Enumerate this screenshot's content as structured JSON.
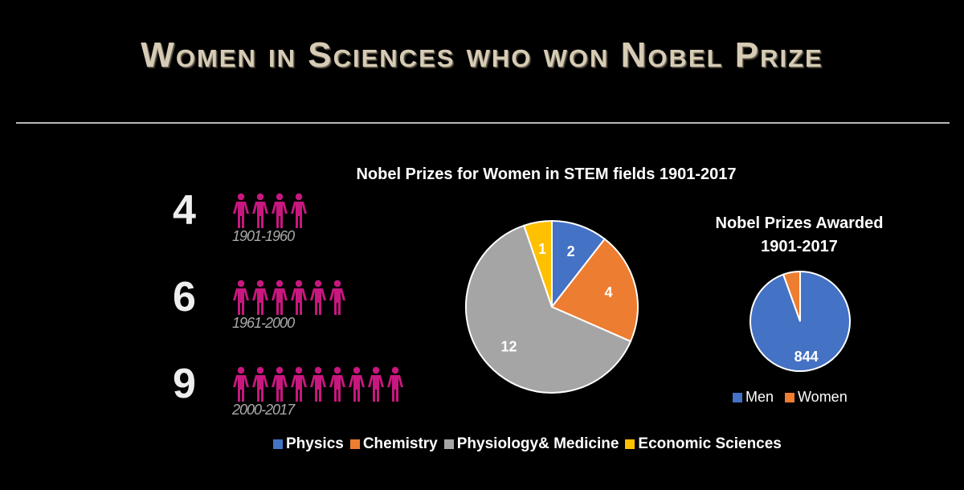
{
  "page_title": "Women in Sciences who won Nobel Prize",
  "counts": [
    {
      "number": "4",
      "figures": 4,
      "period": "1901-1960"
    },
    {
      "number": "6",
      "figures": 6,
      "period": "1961-2000"
    },
    {
      "number": "9",
      "figures": 9,
      "period": "2000-2017"
    }
  ],
  "colors": {
    "figure": "#c8177f",
    "physics": "#4472c4",
    "chemistry": "#ed7d31",
    "physiology": "#a5a5a5",
    "economics": "#ffc000",
    "men": "#4472c4",
    "women": "#ed7d31"
  },
  "chart_data": [
    {
      "type": "pie",
      "title": "Nobel Prizes for Women in STEM fields 1901-2017",
      "categories": [
        "Physics",
        "Chemistry",
        "Physiology& Medicine",
        "Economic Sciences"
      ],
      "values": [
        2,
        4,
        12,
        1
      ],
      "legend": "bottom"
    },
    {
      "type": "pie",
      "title_line1": "Nobel Prizes Awarded",
      "title_line2": "1901-2017",
      "categories": [
        "Men",
        "Women"
      ],
      "values": [
        844,
        49
      ],
      "value_labels": [
        "844",
        ""
      ],
      "legend": "bottom"
    }
  ]
}
